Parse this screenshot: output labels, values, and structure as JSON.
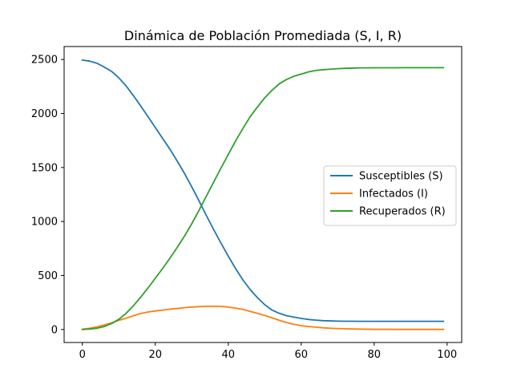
{
  "chart_data": {
    "type": "line",
    "title": "Dinámica de Población Promediada (S, I, R)",
    "xlabel": "",
    "ylabel": "",
    "xlim": [
      -5,
      104
    ],
    "ylim": [
      -120,
      2620
    ],
    "xticks": [
      0,
      20,
      40,
      60,
      80,
      100
    ],
    "yticks": [
      0,
      500,
      1000,
      1500,
      2000,
      2500
    ],
    "xtick_labels": [
      "0",
      "20",
      "40",
      "60",
      "80",
      "100"
    ],
    "ytick_labels": [
      "0",
      "500",
      "1000",
      "1500",
      "2000",
      "2500"
    ],
    "grid": false,
    "legend_position": "center-right",
    "x": [
      0,
      2,
      4,
      6,
      8,
      10,
      12,
      14,
      16,
      18,
      20,
      22,
      24,
      26,
      28,
      30,
      32,
      34,
      36,
      38,
      40,
      42,
      44,
      46,
      48,
      50,
      52,
      54,
      56,
      58,
      60,
      62,
      64,
      66,
      68,
      70,
      72,
      74,
      76,
      78,
      80,
      82,
      84,
      86,
      88,
      90,
      92,
      94,
      96,
      98,
      99
    ],
    "series": [
      {
        "name": "Susceptibles (S)",
        "color": "#1f77b4",
        "values": [
          2495,
          2485,
          2465,
          2430,
          2390,
          2330,
          2255,
          2165,
          2070,
          1970,
          1870,
          1770,
          1670,
          1560,
          1445,
          1320,
          1190,
          1055,
          925,
          800,
          680,
          565,
          460,
          370,
          295,
          230,
          180,
          150,
          128,
          115,
          103,
          93,
          87,
          82,
          80,
          78,
          77,
          77,
          76,
          76,
          76,
          76,
          76,
          76,
          76,
          76,
          76,
          76,
          76,
          76,
          76
        ]
      },
      {
        "name": "Infectados (I)",
        "color": "#ff7f0e",
        "values": [
          3,
          12,
          25,
          42,
          62,
          85,
          105,
          128,
          148,
          162,
          172,
          180,
          188,
          195,
          202,
          208,
          212,
          215,
          216,
          214,
          208,
          198,
          186,
          168,
          150,
          130,
          108,
          85,
          65,
          48,
          36,
          28,
          22,
          16,
          12,
          9,
          7,
          5,
          4,
          3,
          2,
          2,
          2,
          1,
          1,
          1,
          1,
          1,
          1,
          1,
          1
        ]
      },
      {
        "name": "Recuperados (R)",
        "color": "#2ca02c",
        "values": [
          0,
          5,
          12,
          28,
          55,
          95,
          150,
          220,
          300,
          385,
          475,
          565,
          660,
          760,
          865,
          980,
          1105,
          1235,
          1365,
          1495,
          1620,
          1745,
          1860,
          1970,
          2060,
          2145,
          2215,
          2275,
          2315,
          2345,
          2365,
          2385,
          2398,
          2405,
          2410,
          2415,
          2418,
          2420,
          2422,
          2422,
          2423,
          2423,
          2423,
          2423,
          2424,
          2424,
          2424,
          2424,
          2424,
          2424,
          2424
        ]
      }
    ]
  }
}
